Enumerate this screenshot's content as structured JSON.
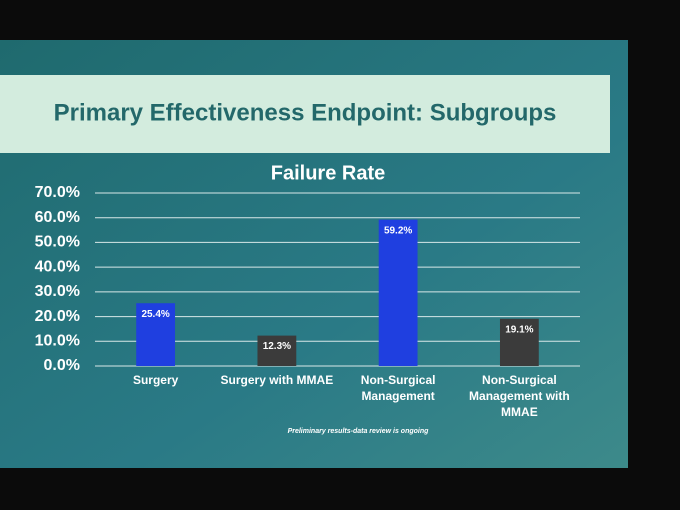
{
  "slide": {
    "title": "Primary Effectiveness Endpoint: Subgroups",
    "footnote": "Preliminary results-data review is ongoing"
  },
  "chart_data": {
    "type": "bar",
    "title": "Failure Rate",
    "categories": [
      "Surgery",
      "Surgery with MMAE",
      "Non-Surgical Management",
      "Non-Surgical Management with MMAE"
    ],
    "values": [
      25.4,
      12.3,
      59.2,
      19.1
    ],
    "value_labels": [
      "25.4%",
      "12.3%",
      "59.2%",
      "19.1%"
    ],
    "colors": [
      "#1f3fe0",
      "#3b3b3b",
      "#1f3fe0",
      "#3b3b3b"
    ],
    "ylim": [
      0,
      70
    ],
    "yticks": [
      {
        "value": 0,
        "label": "0.0%"
      },
      {
        "value": 10,
        "label": "10.0%"
      },
      {
        "value": 20,
        "label": "20.0%"
      },
      {
        "value": 30,
        "label": "30.0%"
      },
      {
        "value": 40,
        "label": "40.0%"
      },
      {
        "value": 50,
        "label": "50.0%"
      },
      {
        "value": 60,
        "label": "60.0%"
      },
      {
        "value": 70,
        "label": "70.0%"
      }
    ],
    "grid": true
  }
}
